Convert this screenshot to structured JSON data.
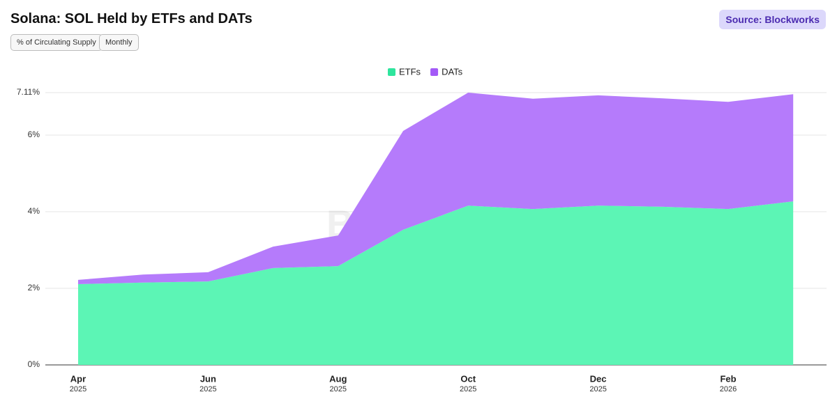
{
  "chart_data": {
    "type": "stacked_area",
    "title": "Solana: SOL Held by ETFs and DATs",
    "source": "Source: Blockworks",
    "controls": [
      "% of Circulating Supply",
      "Monthly"
    ],
    "watermark": "Blockworks",
    "categories": [
      "Apr",
      null,
      "Jun",
      null,
      "Aug",
      null,
      "Oct",
      null,
      "Dec",
      null,
      "Feb",
      null
    ],
    "category_years": [
      "2025",
      null,
      "2025",
      null,
      "2025",
      null,
      "2025",
      null,
      "2025",
      null,
      "2026",
      null
    ],
    "series": [
      {
        "name": "ETFs",
        "color": "#5cf5b5",
        "legend_color": "#2ee59d",
        "values": [
          2.11,
          2.15,
          2.18,
          2.53,
          2.58,
          3.53,
          4.16,
          4.07,
          4.16,
          4.13,
          4.07,
          4.27
        ]
      },
      {
        "name": "DATs",
        "color": "#b57bfb",
        "legend_color": "#a35af7",
        "values": [
          0.11,
          0.21,
          0.24,
          0.56,
          0.8,
          2.58,
          2.95,
          2.88,
          2.88,
          2.83,
          2.8,
          2.8
        ]
      }
    ],
    "ylim": [
      0,
      7.11
    ],
    "yticks": [
      {
        "value": 0,
        "label": "0%"
      },
      {
        "value": 2,
        "label": "2%"
      },
      {
        "value": 4,
        "label": "4%"
      },
      {
        "value": 6,
        "label": "6%"
      },
      {
        "value": 7.11,
        "label": "7.11%"
      }
    ],
    "grid": true
  }
}
